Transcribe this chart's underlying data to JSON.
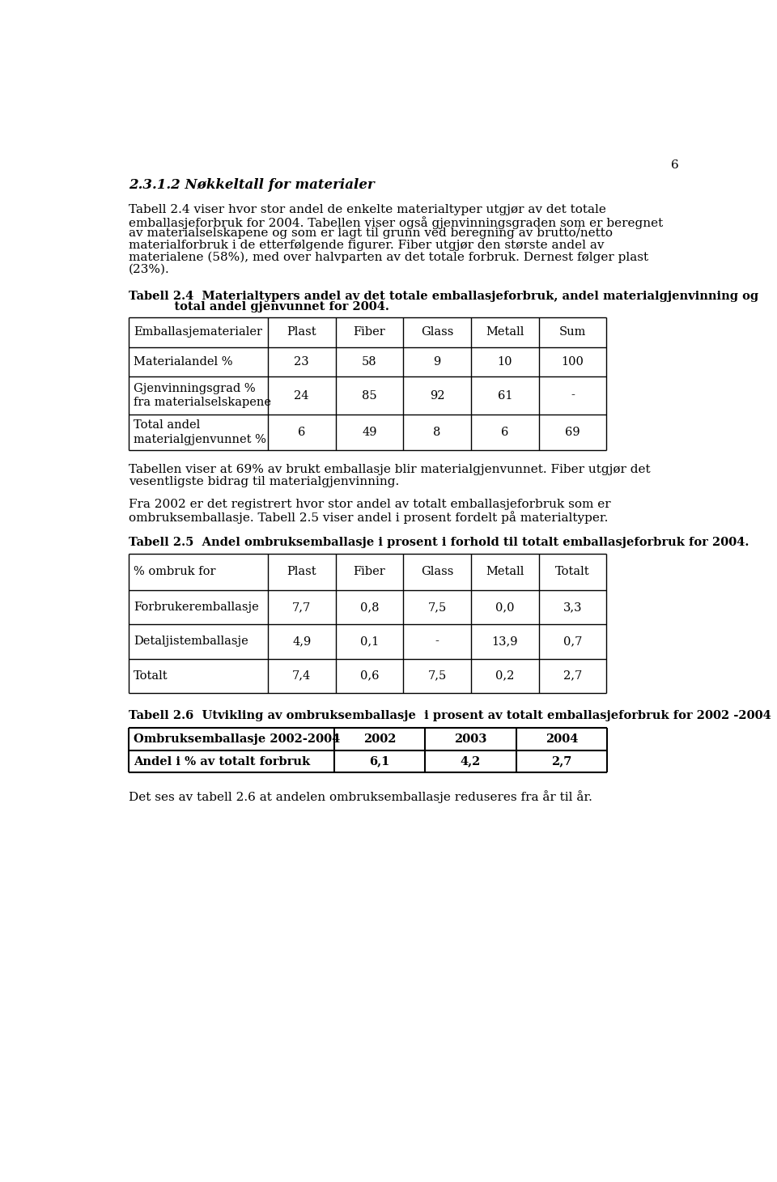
{
  "page_number": "6",
  "section_title": "2.3.1.2 Nøkkeltall for materialer",
  "paragraph1_lines": [
    "Tabell 2.4 viser hvor stor andel de enkelte materialtyper utgjør av det totale",
    "emballasjeforbruk for 2004. Tabellen viser også gjenvinningsgraden som er beregnet",
    "av materialselskapene og som er lagt til grunn ved beregning av brutto/netto",
    "materialforbruk i de etterfølgende figurer. Fiber utgjør den største andel av",
    "materialene (58%), med over halvparten av det totale forbruk. Dernest følger plast",
    "(23%)."
  ],
  "table24_caption_line1": "Tabell 2.4  Materialtypers andel av det totale emballasjeforbruk, andel materialgjenvinning og",
  "table24_caption_line2": "           total andel gjenvunnet for 2004.",
  "table24_headers": [
    "Emballasjematerialer",
    "Plast",
    "Fiber",
    "Glass",
    "Metall",
    "Sum"
  ],
  "table24_rows": [
    [
      "Materialandel %",
      "23",
      "58",
      "9",
      "10",
      "100"
    ],
    [
      "Gjenvinningsgrad %\nfra materialselskapene",
      "24",
      "85",
      "92",
      "61",
      "-"
    ],
    [
      "Total andel\nmaterialgjenvunnet %",
      "6",
      "49",
      "8",
      "6",
      "69"
    ]
  ],
  "paragraph2_lines": [
    "Tabellen viser at 69% av brukt emballasje blir materialgjenvunnet. Fiber utgjør det",
    "vesentligste bidrag til materialgjenvinning."
  ],
  "paragraph3_lines": [
    "Fra 2002 er det registrert hvor stor andel av totalt emballasjeforbruk som er",
    "ombruksemballasje. Tabell 2.5 viser andel i prosent fordelt på materialtyper."
  ],
  "table25_caption": "Tabell 2.5  Andel ombruksemballasje i prosent i forhold til totalt emballasjeforbruk for 2004.",
  "table25_headers": [
    "% ombruk for",
    "Plast",
    "Fiber",
    "Glass",
    "Metall",
    "Totalt"
  ],
  "table25_rows": [
    [
      "Forbrukeremballasje",
      "7,7",
      "0,8",
      "7,5",
      "0,0",
      "3,3"
    ],
    [
      "Detaljistemballasje",
      "4,9",
      "0,1",
      "-",
      "13,9",
      "0,7"
    ],
    [
      "Totalt",
      "7,4",
      "0,6",
      "7,5",
      "0,2",
      "2,7"
    ]
  ],
  "table26_caption": "Tabell 2.6  Utvikling av ombruksemballasje  i prosent av totalt emballasjeforbruk for 2002 -2004",
  "table26_headers": [
    "Ombruksemballasje 2002-2004",
    "2002",
    "2003",
    "2004"
  ],
  "table26_rows": [
    [
      "Andel i % av totalt forbruk",
      "6,1",
      "4,2",
      "2,7"
    ]
  ],
  "paragraph4": "Det ses av tabell 2.6 at andelen ombruksemballasje reduseres fra år til år.",
  "bg_color": "#ffffff",
  "text_color": "#000000"
}
